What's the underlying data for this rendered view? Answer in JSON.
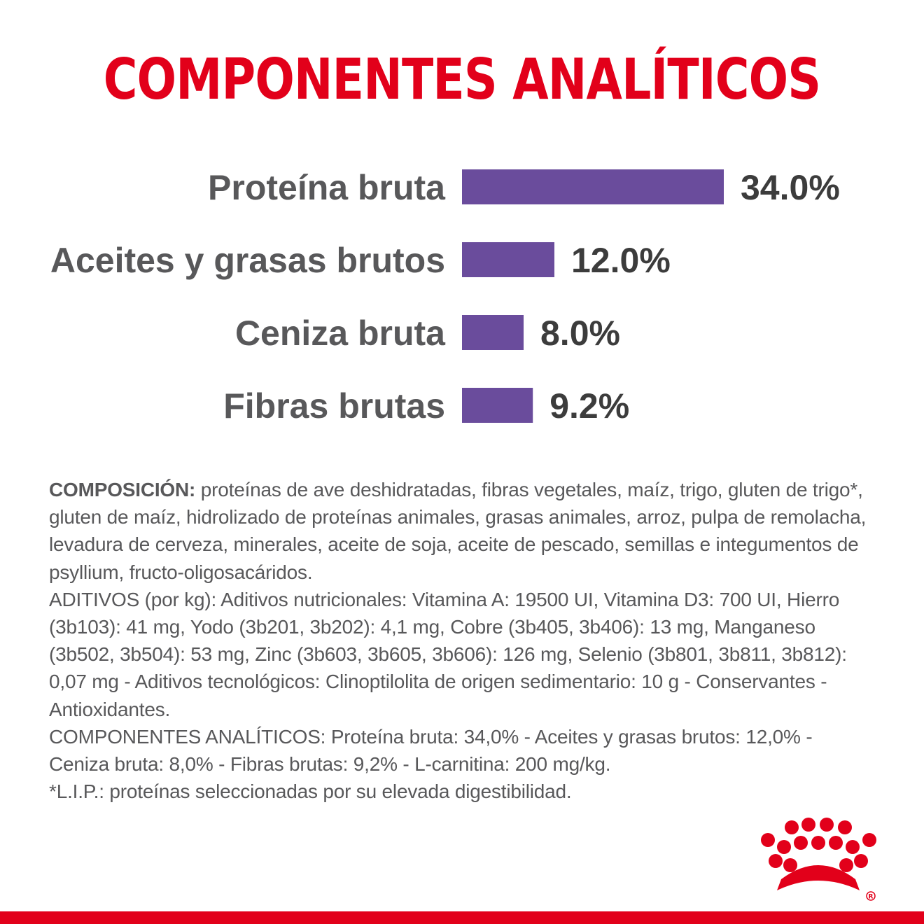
{
  "chart_data": {
    "type": "bar",
    "orientation": "horizontal",
    "title": "COMPONENTES ANALÍTICOS",
    "categories": [
      "Proteína bruta",
      "Aceites y grasas brutos",
      "Ceniza bruta",
      "Fibras brutas"
    ],
    "values": [
      34.0,
      12.0,
      8.0,
      9.2
    ],
    "value_labels": [
      "34.0%",
      "12.0%",
      "8.0%",
      "9.2%"
    ],
    "unit": "%",
    "bar_color": "#6a4c9c",
    "grid": false,
    "legend": "none"
  },
  "composition": {
    "label": "COMPOSICIÓN:",
    "text": " proteínas de ave deshidratadas, fibras vegetales, maíz, trigo, gluten de trigo*, gluten de maíz, hidrolizado de proteínas animales, grasas animales, arroz, pulpa de remolacha, levadura de cerveza, minerales, aceite de soja, aceite de pescado, semillas e integumentos de psyllium, fructo-oligosacáridos.",
    "additives": "ADITIVOS (por kg): Aditivos nutricionales: Vitamina A: 19500 UI, Vitamina D3: 700 UI, Hierro (3b103): 41 mg, Yodo (3b201, 3b202): 4,1 mg, Cobre (3b405, 3b406): 13 mg, Manganeso (3b502, 3b504): 53 mg, Zinc (3b603, 3b605, 3b606): 126 mg, Selenio (3b801, 3b811, 3b812): 0,07 mg - Aditivos tecnológicos: Clinoptilolita de origen sedimentario: 10 g - Conservantes - Antioxidantes.",
    "analytical": "COMPONENTES ANALÍTICOS: Proteína bruta: 34,0% - Aceites y grasas brutos: 12,0% - Ceniza bruta: 8,0% - Fibras brutas: 9,2% - L-carnitina: 200 mg/kg.",
    "footnote": "*L.I.P.: proteínas seleccionadas por su elevada digestibilidad."
  },
  "colors": {
    "brand_red": "#e2001a",
    "text_gray": "#58585a"
  },
  "icons": {
    "logo": "crown-icon"
  }
}
